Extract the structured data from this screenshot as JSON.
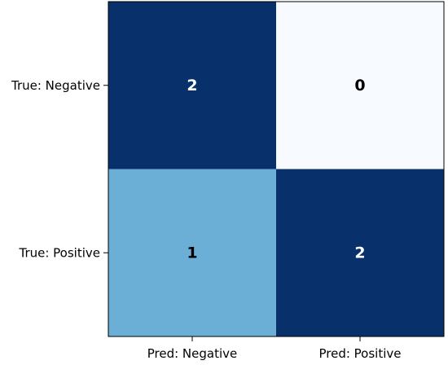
{
  "chart_data": {
    "type": "heatmap",
    "x_categories": [
      "Pred: Negative",
      "Pred: Positive"
    ],
    "y_categories": [
      "True: Negative",
      "True: Positive"
    ],
    "values": [
      [
        2,
        0
      ],
      [
        1,
        2
      ]
    ],
    "colormap": "Blues",
    "vmin": 0,
    "vmax": 2,
    "colors": {
      "high": "#08306b",
      "mid": "#6baed6",
      "low": "#f7fbff",
      "text_on_dark": "#ffffff",
      "text_on_light": "#000000"
    }
  }
}
